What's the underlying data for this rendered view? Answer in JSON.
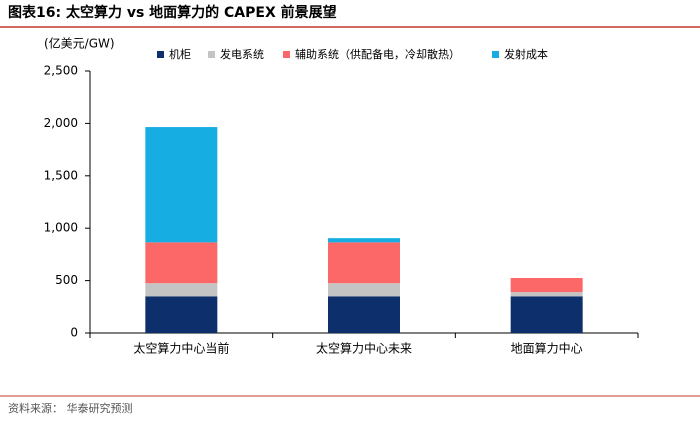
{
  "chart_data": {
    "type": "stacked_bar",
    "title": "图表16:  太空算力 vs 地面算力的 CAPEX 前景展望",
    "y_label": "(亿美元/GW)",
    "source": "资料来源：  华泰研究预测",
    "categories": [
      "太空算力中心当前",
      "太空算力中心未来",
      "地面算力中心"
    ],
    "series": [
      {
        "name": "机柜",
        "color": "#0d2f6b",
        "values": [
          350,
          350,
          350
        ]
      },
      {
        "name": "发电系统",
        "color": "#c4c4c4",
        "values": [
          125,
          125,
          40
        ]
      },
      {
        "name": "辅助系统（供配备电，冷却散热）",
        "color": "#fc6868",
        "values": [
          390,
          390,
          135
        ]
      },
      {
        "name": "发射成本",
        "color": "#16ade3",
        "values": [
          1100,
          40,
          null
        ]
      }
    ],
    "ylim": [
      0,
      2500
    ],
    "yticks": [
      0,
      500,
      {
        "value": 1000,
        "label": "1,000"
      },
      {
        "value": 1500,
        "label": "1,500"
      },
      {
        "value": 2000,
        "label": "2,000"
      },
      {
        "value": 2500,
        "label": "2,500"
      }
    ]
  }
}
